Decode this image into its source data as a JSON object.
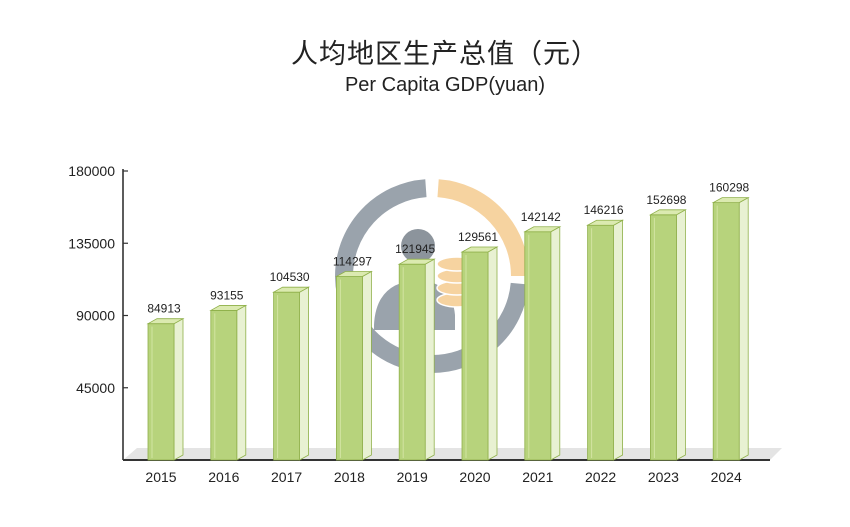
{
  "chart_data": {
    "type": "bar",
    "title": "人均地区生产总值（元）",
    "subtitle": "Per Capita GDP(yuan)",
    "xlabel": "",
    "ylabel": "",
    "ylim": [
      0,
      180000
    ],
    "y_ticks": [
      45000,
      90000,
      135000,
      180000
    ],
    "categories": [
      "2015",
      "2016",
      "2017",
      "2018",
      "2019",
      "2020",
      "2021",
      "2022",
      "2023",
      "2024"
    ],
    "values": [
      84913,
      93155,
      104530,
      114297,
      121945,
      129561,
      142142,
      146216,
      152698,
      160298
    ],
    "data_labels": [
      "84913",
      "93155",
      "104530",
      "114297",
      "121945",
      "129561",
      "142142",
      "146216",
      "152698",
      "160298"
    ],
    "grid": false,
    "legend": "none"
  },
  "colors": {
    "bar_front": "#b7d37c",
    "bar_top": "#dbeab0",
    "bar_side": "#e8f1d2",
    "bar_edge": "#8fb04a",
    "axis": "#333333",
    "bg_ring_gray": "#9aa3ac",
    "bg_ring_orange": "#f6d3a0"
  }
}
